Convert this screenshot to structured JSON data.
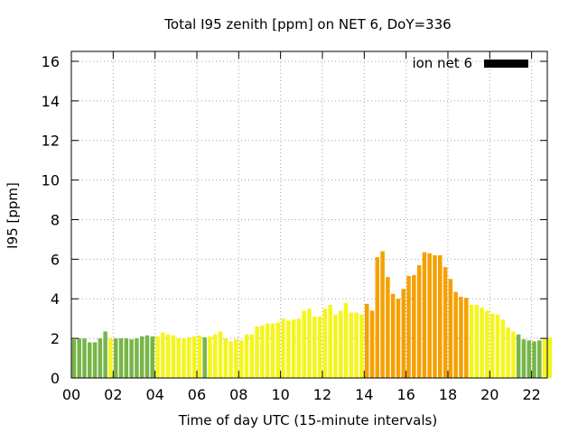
{
  "chart_data": {
    "type": "bar",
    "title": "Total I95 zenith [ppm] on NET 6, DoY=336",
    "xlabel": "Time of day UTC (15-minute intervals)",
    "ylabel": "I95 [ppm]",
    "xlim": [
      0,
      22.75
    ],
    "ylim": [
      0,
      16.5
    ],
    "grid": true,
    "legend": {
      "label": "ion net 6",
      "position": "top-right",
      "color": "#000000"
    },
    "x_ticks": [
      "00",
      "02",
      "04",
      "06",
      "08",
      "10",
      "12",
      "14",
      "16",
      "18",
      "20",
      "22"
    ],
    "y_ticks": [
      "0",
      "2",
      "4",
      "6",
      "8",
      "10",
      "12",
      "14",
      "16"
    ],
    "interval_hours": 0.25,
    "start_hour": 0,
    "colors": {
      "green": "#77b548",
      "yellow": "#f5f51e",
      "orange": "#f5a000"
    },
    "bar_colors": [
      "green",
      "green",
      "green",
      "green",
      "green",
      "green",
      "green",
      "yellow",
      "green",
      "green",
      "green",
      "green",
      "green",
      "green",
      "green",
      "green",
      "yellow",
      "yellow",
      "yellow",
      "yellow",
      "yellow",
      "yellow",
      "yellow",
      "yellow",
      "yellow",
      "green",
      "yellow",
      "yellow",
      "yellow",
      "yellow",
      "yellow",
      "yellow",
      "yellow",
      "yellow",
      "yellow",
      "yellow",
      "yellow",
      "yellow",
      "yellow",
      "yellow",
      "yellow",
      "yellow",
      "yellow",
      "yellow",
      "yellow",
      "yellow",
      "yellow",
      "yellow",
      "yellow",
      "yellow",
      "yellow",
      "yellow",
      "yellow",
      "yellow",
      "yellow",
      "yellow",
      "orange",
      "orange",
      "orange",
      "orange",
      "orange",
      "orange",
      "orange",
      "orange",
      "orange",
      "orange",
      "orange",
      "orange",
      "orange",
      "orange",
      "orange",
      "orange",
      "orange",
      "orange",
      "orange",
      "orange",
      "yellow",
      "yellow",
      "yellow",
      "yellow",
      "yellow",
      "yellow",
      "yellow",
      "yellow",
      "yellow",
      "green",
      "green",
      "green",
      "green",
      "green",
      "yellow",
      "yellow"
    ],
    "values": [
      1.95,
      2.0,
      2.0,
      1.8,
      1.8,
      2.0,
      2.35,
      2.0,
      2.0,
      2.0,
      2.0,
      1.95,
      2.0,
      2.1,
      2.15,
      2.1,
      2.1,
      2.3,
      2.2,
      2.15,
      2.0,
      2.0,
      2.05,
      2.1,
      2.15,
      2.05,
      2.1,
      2.2,
      2.35,
      2.0,
      1.85,
      1.95,
      1.9,
      2.2,
      2.2,
      2.6,
      2.65,
      2.75,
      2.75,
      2.8,
      3.0,
      2.9,
      2.95,
      3.0,
      3.4,
      3.5,
      3.1,
      3.1,
      3.5,
      3.7,
      3.2,
      3.4,
      3.8,
      3.3,
      3.3,
      3.2,
      3.75,
      3.4,
      6.1,
      6.4,
      5.1,
      4.25,
      4.0,
      4.5,
      5.15,
      5.2,
      5.7,
      6.35,
      6.3,
      6.2,
      6.2,
      5.6,
      5.0,
      4.35,
      4.1,
      4.05,
      3.7,
      3.7,
      3.55,
      3.4,
      3.25,
      3.2,
      2.95,
      2.55,
      2.35,
      2.2,
      1.95,
      1.9,
      1.85,
      1.9,
      1.95,
      2.05
    ]
  }
}
